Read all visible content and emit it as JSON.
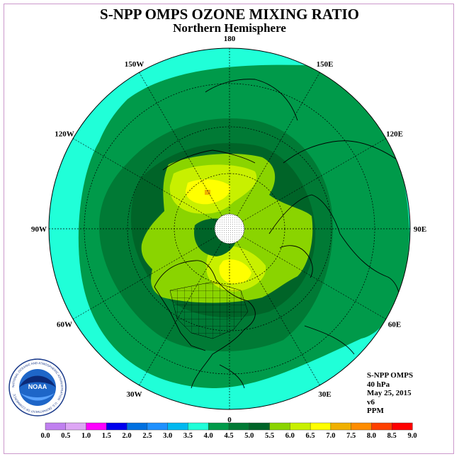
{
  "title": "S-NPP OMPS OZONE MIXING RATIO",
  "subtitle": "Northern Hemisphere",
  "longitude_labels": [
    {
      "text": "90E",
      "lon": 90
    },
    {
      "text": "60E",
      "lon": 60
    },
    {
      "text": "30E",
      "lon": 30
    },
    {
      "text": "0",
      "lon": 0
    },
    {
      "text": "30W",
      "lon": -30
    },
    {
      "text": "60W",
      "lon": -60
    },
    {
      "text": "90W",
      "lon": -90
    },
    {
      "text": "120W",
      "lon": -120
    },
    {
      "text": "150W",
      "lon": -150
    },
    {
      "text": "180",
      "lon": 180
    },
    {
      "text": "150E",
      "lon": 150
    },
    {
      "text": "120E",
      "lon": 120
    }
  ],
  "info": {
    "instrument": "S-NPP OMPS",
    "pressure_level": "40 hPa",
    "date": "May 25, 2015",
    "version": "v6",
    "units": "PPM"
  },
  "logo": {
    "text": "NOAA",
    "ring_text": "NATIONAL OCEANIC AND ATMOSPHERIC ADMINISTRATION · U.S. DEPARTMENT OF COMMERCE"
  },
  "colorbar": {
    "labels": [
      "0.0",
      "0.5",
      "1.0",
      "1.5",
      "2.0",
      "2.5",
      "3.0",
      "3.5",
      "4.0",
      "4.5",
      "5.0",
      "5.5",
      "6.0",
      "6.5",
      "7.0",
      "7.5",
      "8.0",
      "8.5",
      "9.0"
    ],
    "colors": [
      "#c080f0",
      "#dda6f5",
      "#ff00ff",
      "#0000ee",
      "#0070e0",
      "#1e90ff",
      "#00b8f0",
      "#20ffd8",
      "#009a4a",
      "#007a35",
      "#006428",
      "#8ad400",
      "#c8f000",
      "#ffff00",
      "#f0b000",
      "#ff8c00",
      "#ff4000",
      "#ff0000",
      "#8b4513"
    ]
  },
  "chart_data": {
    "type": "heatmap",
    "title": "S-NPP OMPS OZONE MIXING RATIO",
    "subtitle": "Northern Hemisphere",
    "projection": "polar stereographic (north pole centered)",
    "variable": "Ozone mixing ratio",
    "units": "PPM",
    "pressure_level": "40 hPa",
    "date": "May 25, 2015",
    "color_scale_range": [
      0.0,
      9.0
    ],
    "color_scale_step": 0.5,
    "levels": [
      {
        "range": [
          3.5,
          4.0
        ],
        "color": "#20ffd8",
        "region": "outer ring, low latitudes"
      },
      {
        "range": [
          4.0,
          4.5
        ],
        "color": "#009a4a",
        "region": "mid latitudes"
      },
      {
        "range": [
          4.5,
          5.0
        ],
        "color": "#007a35",
        "region": "band around polar region"
      },
      {
        "range": [
          5.0,
          5.5
        ],
        "color": "#006428",
        "region": "near pole center"
      },
      {
        "range": [
          5.5,
          6.0
        ],
        "color": "#8ad400",
        "region": "high latitude ring"
      },
      {
        "range": [
          6.0,
          6.5
        ],
        "color": "#c8f000",
        "region": "patches over Siberia and Canada"
      },
      {
        "range": [
          6.5,
          7.0
        ],
        "color": "#ffff00",
        "region": "small maxima"
      },
      {
        "range": [
          7.0,
          7.5
        ],
        "color": "#f0b000",
        "region": "isolated spot"
      }
    ]
  }
}
